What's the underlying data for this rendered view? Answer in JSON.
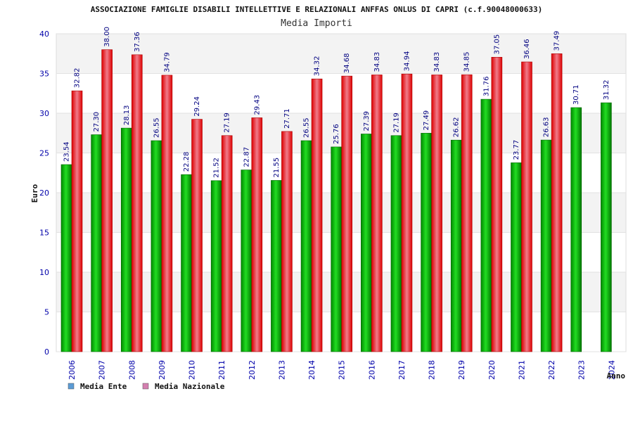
{
  "chart_data": {
    "type": "bar",
    "title": "ASSOCIAZIONE FAMIGLIE DISABILI INTELLETTIVE E RELAZIONALI ANFFAS ONLUS DI CAPRI (c.f.90048000633)",
    "subtitle": "Media Importi",
    "xlabel": "Anno",
    "ylabel": "Euro",
    "ylim": [
      0,
      40
    ],
    "yticks": [
      0,
      5,
      10,
      15,
      20,
      25,
      30,
      35,
      40
    ],
    "grid": true,
    "legend_position": "bottom-left",
    "categories": [
      "2006",
      "2007",
      "2008",
      "2009",
      "2010",
      "2011",
      "2012",
      "2013",
      "2014",
      "2015",
      "2016",
      "2017",
      "2018",
      "2019",
      "2020",
      "2021",
      "2022",
      "2023",
      "2024"
    ],
    "series": [
      {
        "name": "Media Ente",
        "color": "#00aa00",
        "legend_color": "#5b9bd5",
        "values": [
          23.54,
          27.3,
          28.13,
          26.55,
          22.28,
          21.52,
          22.87,
          21.55,
          26.55,
          25.76,
          27.39,
          27.19,
          27.49,
          26.62,
          31.76,
          23.77,
          26.63,
          30.71,
          31.32
        ],
        "labels": [
          "23.54",
          "27.30",
          "28.13",
          "26.55",
          "22.28",
          "21.52",
          "22.87",
          "21.55",
          "26.55",
          "25.76",
          "27.39",
          "27.19",
          "27.49",
          "26.62",
          "31.76",
          "23.77",
          "26.63",
          "30.71",
          "31.32"
        ]
      },
      {
        "name": "Media Nazionale",
        "color": "#e01010",
        "legend_color": "#d47fb0",
        "values": [
          32.82,
          38.0,
          37.36,
          34.79,
          29.24,
          27.19,
          29.43,
          27.71,
          34.32,
          34.68,
          34.83,
          34.94,
          34.83,
          34.85,
          37.05,
          36.46,
          37.49,
          null,
          null
        ],
        "labels": [
          "32.82",
          "38.00",
          "37.36",
          "34.79",
          "29.24",
          "27.19",
          "29.43",
          "27.71",
          "34.32",
          "34.68",
          "34.83",
          "34.94",
          "34.83",
          "34.85",
          "37.05",
          "36.46",
          "37.49",
          "",
          ""
        ]
      }
    ]
  }
}
